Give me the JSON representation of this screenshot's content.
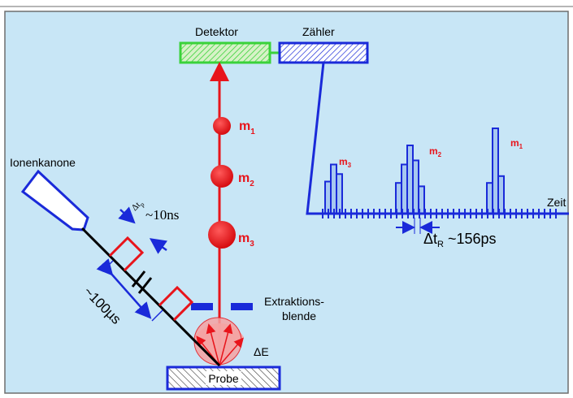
{
  "labels": {
    "detector": "Detektor",
    "counter": "Zähler",
    "ion_gun": "Ionenkanone",
    "extraction_line1": "Extraktions-",
    "extraction_line2": "blende",
    "sample": "Probe",
    "energy_spread": "ΔE",
    "time_axis": "Zeit",
    "pulse_width": "~10ns",
    "pulse_width_symbol": "Δt",
    "pulse_width_sub": "p",
    "pulse_period": "~100µs",
    "resolution_symbol": "Δt",
    "resolution_sub": "R",
    "resolution_value": " ~156ps"
  },
  "masses": [
    {
      "symbol": "m",
      "index": "1"
    },
    {
      "symbol": "m",
      "index": "2"
    },
    {
      "symbol": "m",
      "index": "3"
    }
  ],
  "spectrum_peaks": [
    {
      "symbol": "m",
      "index": "3",
      "bar_heights": [
        0.47,
        0.72,
        0.58
      ]
    },
    {
      "symbol": "m",
      "index": "2",
      "bar_heights": [
        0.45,
        0.72,
        1.0,
        0.78,
        0.4
      ]
    },
    {
      "symbol": "m",
      "index": "1",
      "bar_heights": [
        0.45,
        1.25,
        0.55
      ]
    }
  ],
  "colors": {
    "background": "#c8e6f6",
    "frame": "#6e6e6e",
    "beam": "#e8141b",
    "counter_blue": "#1a2ad9",
    "detector_green": "#3ad23a",
    "spectrum_fill": "#a7c8f0"
  }
}
